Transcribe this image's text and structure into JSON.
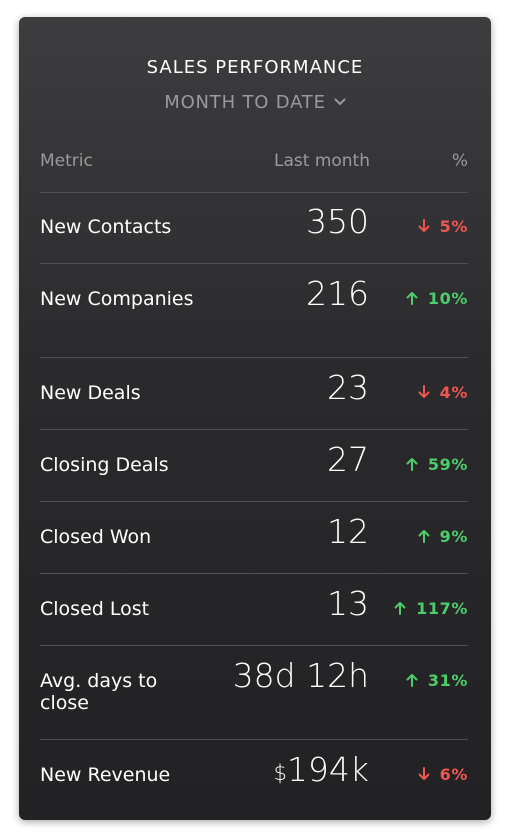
{
  "widget": {
    "title": "SALES PERFORMANCE",
    "period_selector": "MONTH TO DATE",
    "columns": {
      "metric": "Metric",
      "value": "Last month",
      "change": "%"
    },
    "rows": [
      {
        "label": "New Contacts",
        "value": "350",
        "change": "5%",
        "direction": "down"
      },
      {
        "label": "New Companies",
        "value": "216",
        "change": "10%",
        "direction": "up"
      },
      {
        "label": "New Deals",
        "value": "23",
        "change": "4%",
        "direction": "down"
      },
      {
        "label": "Closing Deals",
        "value": "27",
        "change": "59%",
        "direction": "up"
      },
      {
        "label": "Closed Won",
        "value": "12",
        "change": "9%",
        "direction": "up"
      },
      {
        "label": "Closed Lost",
        "value": "13",
        "change": "117%",
        "direction": "up"
      },
      {
        "label": "Avg. days to close",
        "value": "38d 12h",
        "change": "31%",
        "direction": "up"
      },
      {
        "label": "New Revenue",
        "currency": "$",
        "value": "194k",
        "change": "6%",
        "direction": "down"
      }
    ]
  },
  "colors": {
    "positive": "#4ccd6a",
    "negative": "#f0564f",
    "background": "#2a2a2c"
  },
  "icons": {
    "up": "arrow-up-icon",
    "down": "arrow-down-icon",
    "dropdown": "chevron-down-icon"
  }
}
